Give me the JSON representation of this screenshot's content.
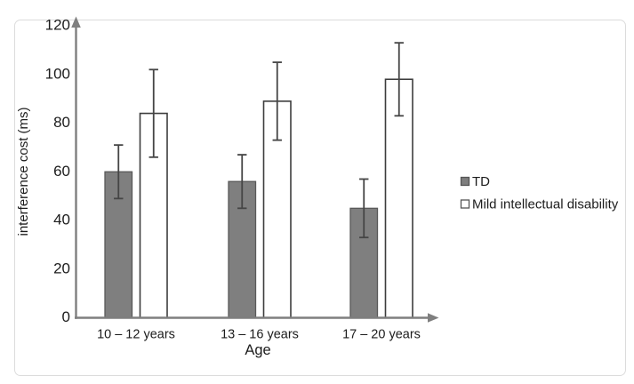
{
  "figure": {
    "background": "#ffffff",
    "frame_border_color": "#dcdcdc"
  },
  "chart_data": {
    "type": "bar",
    "title": "",
    "xlabel": "Age",
    "ylabel": "interference cost (ms)",
    "categories": [
      "10 – 12 years",
      "13 – 16 years",
      "17 – 20 years"
    ],
    "series": [
      {
        "name": "TD",
        "values": [
          60,
          56,
          45
        ],
        "error_low": [
          49,
          45,
          33
        ],
        "error_high": [
          71,
          67,
          57
        ],
        "fill": "#7f7f7f",
        "stroke": "#595959"
      },
      {
        "name": "Mild intellectual disability",
        "values": [
          84,
          89,
          98
        ],
        "error_low": [
          66,
          73,
          83
        ],
        "error_high": [
          102,
          105,
          113
        ],
        "fill": "#ffffff",
        "stroke": "#3d3d3d"
      }
    ],
    "ylim": [
      0,
      120
    ],
    "yticks": [
      0,
      20,
      40,
      60,
      80,
      100,
      120
    ],
    "grid": false,
    "legend_position": "right",
    "colors": {
      "axis": "#7f7f7f",
      "error_bar": "#454545",
      "text": "#1c1c1c",
      "legend_swatch_border": "#555555"
    }
  }
}
